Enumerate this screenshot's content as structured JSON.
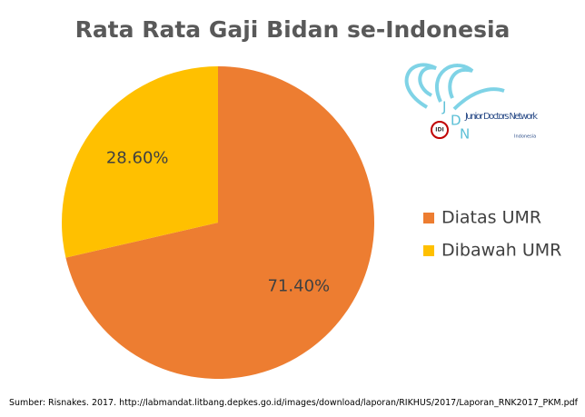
{
  "chart_data": {
    "type": "pie",
    "title": "Rata Rata Gaji Bidan se-Indonesia",
    "categories": [
      "Diatas UMR",
      "Dibawah UMR"
    ],
    "values": [
      71.4,
      28.6
    ],
    "value_labels": [
      "71.40%",
      "28.60%"
    ],
    "colors": [
      "#ed7d31",
      "#ffc000"
    ],
    "legend": "right",
    "source": "Sumber: Risnakes. 2017. http://labmandat.litbang.depkes.go.id/images/download/laporan/RIKHUS/2017/Laporan_RNK2017_PKM.pdf"
  },
  "logo": {
    "name": "Junior Doctors Network",
    "country": "Indonesia",
    "mark": [
      "J",
      "D",
      "N"
    ],
    "badge": "IDI"
  }
}
